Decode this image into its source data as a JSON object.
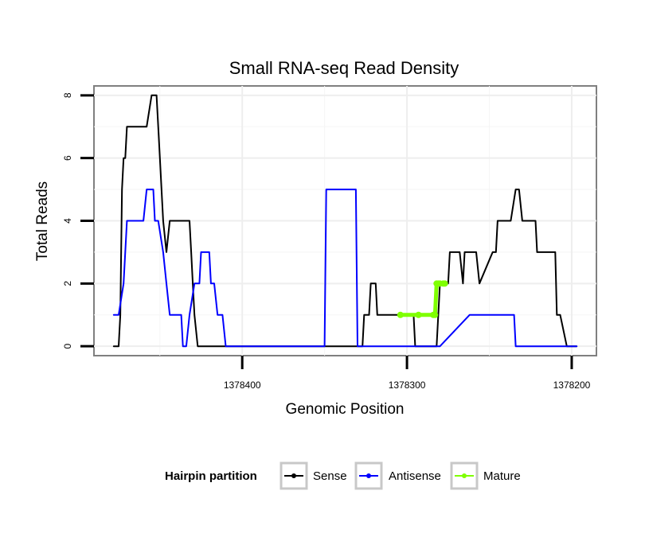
{
  "chart_data": {
    "type": "line",
    "title": "Small RNA-seq Read Density",
    "xlabel": "Genomic Position",
    "ylabel": "Total Reads",
    "x_reversed": true,
    "xlim": [
      1378490,
      1378185
    ],
    "ylim": [
      -0.3,
      8.3
    ],
    "x_ticks": [
      1378400,
      1378300,
      1378200
    ],
    "x_tick_labels": [
      "1378400",
      "1378300",
      "1378200"
    ],
    "y_ticks": [
      0,
      2,
      4,
      6,
      8
    ],
    "y_tick_labels": [
      "0",
      "2",
      "4",
      "6",
      "8"
    ],
    "grid": true,
    "legend": {
      "title": "Hairpin partition",
      "placement": "bottom",
      "entries": [
        "Sense",
        "Antisense",
        "Mature"
      ]
    },
    "series": [
      {
        "name": "Sense",
        "color": "#000000",
        "x": [
          1378478,
          1378475,
          1378474,
          1378473,
          1378472,
          1378471,
          1378470,
          1378467,
          1378460,
          1378458,
          1378455,
          1378453,
          1378452,
          1378451,
          1378450,
          1378448,
          1378446,
          1378444,
          1378442,
          1378432,
          1378431,
          1378430,
          1378429,
          1378427,
          1378327,
          1378326,
          1378324,
          1378323,
          1378322,
          1378321,
          1378320,
          1378319,
          1378318,
          1378317,
          1378315,
          1378296,
          1378295,
          1378294,
          1378293,
          1378292,
          1378291,
          1378288,
          1378287,
          1378285,
          1378284,
          1378283,
          1378282,
          1378281,
          1378280,
          1378278,
          1378277,
          1378275,
          1378274,
          1378273,
          1378268,
          1378266,
          1378265,
          1378258,
          1378256,
          1378248,
          1378246,
          1378245,
          1378238,
          1378237,
          1378234,
          1378232,
          1378230,
          1378229,
          1378227,
          1378222,
          1378221,
          1378220,
          1378213,
          1378210,
          1378209,
          1378207,
          1378203,
          1378197
        ],
        "y": [
          0,
          0,
          1,
          5,
          6,
          6,
          7,
          7,
          7,
          7,
          8,
          8,
          8,
          7,
          6,
          4,
          3,
          4,
          4,
          4,
          3,
          2,
          1,
          0,
          0,
          1,
          1,
          1,
          2,
          2,
          2,
          2,
          1,
          1,
          1,
          1,
          0,
          0,
          0,
          0,
          0,
          0,
          0,
          0,
          0,
          0,
          0,
          1,
          2,
          2,
          2,
          2,
          3,
          3,
          3,
          2,
          3,
          3,
          2,
          3,
          3,
          4,
          4,
          4,
          5,
          5,
          4,
          4,
          4,
          4,
          3,
          3,
          3,
          3,
          1,
          1,
          0,
          0
        ]
      },
      {
        "name": "Antisense",
        "color": "#0000ff",
        "x": [
          1378478,
          1378475,
          1378472,
          1378470,
          1378463,
          1378460,
          1378458,
          1378455,
          1378454,
          1378453,
          1378451,
          1378448,
          1378446,
          1378444,
          1378442,
          1378437,
          1378436,
          1378434,
          1378432,
          1378429,
          1378428,
          1378426,
          1378425,
          1378423,
          1378420,
          1378419,
          1378417,
          1378415,
          1378412,
          1378410,
          1378406,
          1378400,
          1378350,
          1378349,
          1378331,
          1378330,
          1378300,
          1378280,
          1378262,
          1378235,
          1378234,
          1378220,
          1378197
        ],
        "y": [
          1,
          1,
          2,
          4,
          4,
          4,
          5,
          5,
          5,
          4,
          4,
          3,
          2,
          1,
          1,
          1,
          0,
          0,
          1,
          2,
          2,
          2,
          3,
          3,
          3,
          2,
          2,
          1,
          1,
          0,
          0,
          0,
          0,
          5,
          5,
          0,
          0,
          0,
          1,
          1,
          0,
          0,
          0
        ]
      },
      {
        "name": "Mature",
        "color": "#7fff00",
        "x": [
          1378304,
          1378293,
          1378284,
          1378283,
          1378282,
          1378281,
          1378280,
          1378278,
          1378277
        ],
        "y": [
          1,
          1,
          1,
          1,
          2,
          2,
          2,
          2,
          2
        ]
      }
    ]
  }
}
